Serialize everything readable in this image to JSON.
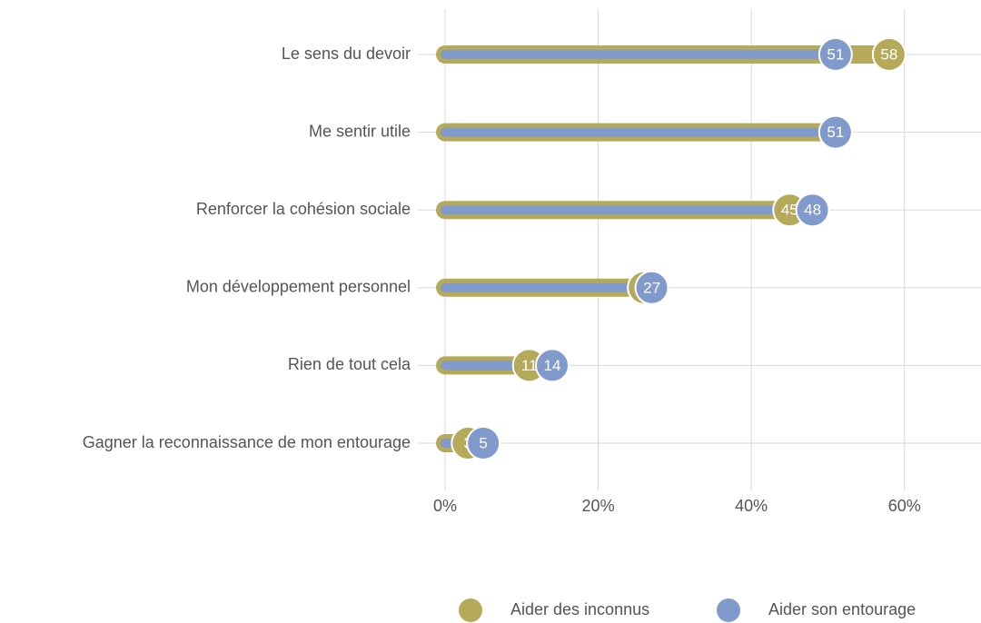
{
  "chart_data": {
    "type": "dumbbell",
    "categories": [
      "Le sens du devoir",
      "Me sentir utile",
      "Renforcer la cohésion sociale",
      "Mon développement personnel",
      "Rien de tout cela",
      "Gagner la reconnaissance de mon entourage"
    ],
    "series": [
      {
        "name": "Aider des inconnus",
        "color": "#b5a95a",
        "values": [
          58,
          51,
          45,
          26,
          11,
          3
        ]
      },
      {
        "name": "Aider son entourage",
        "color": "#7f9acb",
        "values": [
          51,
          51,
          48,
          27,
          14,
          5
        ]
      }
    ],
    "xlim": [
      0,
      70
    ],
    "xticks": [
      {
        "value": 0,
        "label": "0%"
      },
      {
        "value": 20,
        "label": "20%"
      },
      {
        "value": 40,
        "label": "40%"
      },
      {
        "value": 60,
        "label": "60%"
      }
    ],
    "grid": true,
    "legend": "bottom"
  }
}
